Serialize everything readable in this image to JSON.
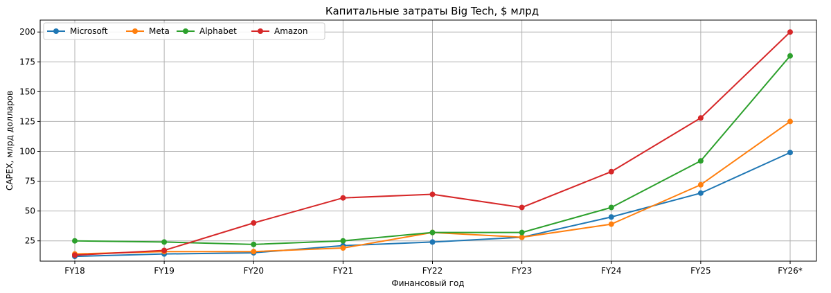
{
  "chart_data": {
    "type": "line",
    "title": "Капитальные затраты Big Tech, $ млрд",
    "xlabel": "Финансовый год",
    "ylabel": "CAPEX, млрд долларов",
    "categories": [
      "FY18",
      "FY19",
      "FY20",
      "FY21",
      "FY22",
      "FY23",
      "FY24",
      "FY25",
      "FY26*"
    ],
    "yticks": [
      25,
      50,
      75,
      100,
      125,
      150,
      175,
      200
    ],
    "ylim": [
      8,
      210
    ],
    "grid": true,
    "legend_position": "top-left",
    "series": [
      {
        "name": "Microsoft",
        "color": "#1f77b4",
        "values": [
          12,
          14,
          15,
          21,
          24,
          28,
          45,
          65,
          99
        ]
      },
      {
        "name": "Meta",
        "color": "#ff7f0e",
        "values": [
          14,
          16,
          16,
          19,
          32,
          28,
          39,
          72,
          125
        ]
      },
      {
        "name": "Alphabet",
        "color": "#2ca02c",
        "values": [
          25,
          24,
          22,
          25,
          32,
          32,
          53,
          92,
          180
        ]
      },
      {
        "name": "Amazon",
        "color": "#d62728",
        "values": [
          13,
          17,
          40,
          61,
          64,
          53,
          83,
          128,
          200
        ]
      }
    ]
  }
}
